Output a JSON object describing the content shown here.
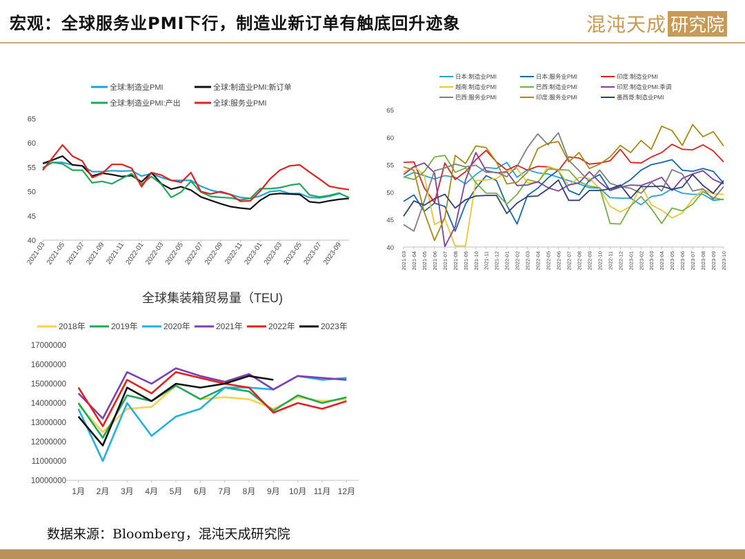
{
  "header": {
    "title": "宏观：全球服务业PMI下行，制造业新订单有触底回升迹象",
    "brand_name": "混沌天成",
    "brand_suffix": "研究院",
    "brand_color": "#c89a55"
  },
  "footer": {
    "source": "数据来源：Bloomberg，混沌天成研究院"
  },
  "chart_data": [
    {
      "type": "line",
      "title": "",
      "x": [
        "2021-03",
        "2021-04",
        "2021-05",
        "2021-06",
        "2021-07",
        "2021-08",
        "2021-09",
        "2021-10",
        "2021-11",
        "2021-12",
        "2022-01",
        "2022-02",
        "2022-03",
        "2022-04",
        "2022-05",
        "2022-06",
        "2022-07",
        "2022-08",
        "2022-09",
        "2022-10",
        "2022-11",
        "2022-12",
        "2023-01",
        "2023-02",
        "2023-03",
        "2023-04",
        "2023-05",
        "2023-06",
        "2023-07",
        "2023-08",
        "2023-09",
        "2023-10"
      ],
      "x_tick_labels": [
        "2021-03",
        "2021-05",
        "2021-07",
        "2021-09",
        "2021-11",
        "2022-01",
        "2022-03",
        "2022-05",
        "2022-07",
        "2022-09",
        "2022-11",
        "2023-01",
        "2023-03",
        "2023-05",
        "2023-07",
        "2023-09"
      ],
      "ylim": [
        40,
        65
      ],
      "yticks": [
        40,
        45,
        50,
        55,
        60,
        65
      ],
      "legend_position": "top",
      "series": [
        {
          "name": "全球:制造业PMI",
          "color": "#1fa3dc",
          "values": [
            55.8,
            56.0,
            56.0,
            55.5,
            55.3,
            54.1,
            54.1,
            54.3,
            54.2,
            54.3,
            53.2,
            53.7,
            52.9,
            52.3,
            52.3,
            52.3,
            51.1,
            50.3,
            49.8,
            49.4,
            48.8,
            48.6,
            49.1,
            50.0,
            50.2,
            49.6,
            49.6,
            48.8,
            48.7,
            49.0,
            49.6,
            48.8
          ]
        },
        {
          "name": "全球:制造业PMI:新订单",
          "color": "#111111",
          "values": [
            55.8,
            56.5,
            57.3,
            55.5,
            55.3,
            53.2,
            53.8,
            53.5,
            53.1,
            53.3,
            52.0,
            53.9,
            51.6,
            50.5,
            51.0,
            50.3,
            48.9,
            48.2,
            47.5,
            46.9,
            46.6,
            46.4,
            48.2,
            49.4,
            49.6,
            49.5,
            49.4,
            47.9,
            47.7,
            48.1,
            48.4,
            48.6
          ]
        },
        {
          "name": "全球:制造业PMI:产出",
          "color": "#1fa85a",
          "values": [
            54.9,
            56.0,
            55.7,
            54.4,
            54.4,
            51.8,
            52.1,
            51.6,
            52.7,
            53.7,
            51.5,
            53.1,
            51.5,
            48.8,
            49.9,
            52.1,
            49.9,
            49.0,
            48.8,
            48.7,
            48.3,
            48.6,
            50.6,
            50.6,
            50.8,
            51.3,
            51.6,
            49.3,
            48.9,
            49.2,
            49.7,
            48.7
          ]
        },
        {
          "name": "全球:服务业PMI",
          "color": "#e3201b",
          "values": [
            54.4,
            57.0,
            59.6,
            57.3,
            56.3,
            52.9,
            53.7,
            55.6,
            55.6,
            54.8,
            51.0,
            53.9,
            53.4,
            52.3,
            51.9,
            53.9,
            50.0,
            49.5,
            50.0,
            49.4,
            48.0,
            48.1,
            50.1,
            52.6,
            54.4,
            55.3,
            55.5,
            54.0,
            52.6,
            51.1,
            50.7,
            50.4
          ]
        }
      ]
    },
    {
      "type": "line",
      "title": "",
      "x": [
        "2021-03",
        "2021-04",
        "2021-05",
        "2021-06",
        "2021-07",
        "2021-08",
        "2021-09",
        "2021-10",
        "2021-11",
        "2021-12",
        "2022-01",
        "2022-02",
        "2022-03",
        "2022-04",
        "2022-05",
        "2022-06",
        "2022-07",
        "2022-08",
        "2022-09",
        "2022-10",
        "2022-11",
        "2022-12",
        "2023-01",
        "2023-02",
        "2023-03",
        "2023-04",
        "2023-05",
        "2023-06",
        "2023-07",
        "2023-08",
        "2023-09",
        "2023-10"
      ],
      "ylim": [
        40,
        65
      ],
      "yticks": [
        40,
        45,
        50,
        55,
        60,
        65
      ],
      "legend_position": "top",
      "series": [
        {
          "name": "日本:制造业PMI",
          "color": "#1fa3dc",
          "values": [
            52.7,
            53.6,
            53.0,
            52.4,
            53.0,
            52.7,
            51.5,
            53.2,
            54.5,
            54.3,
            55.4,
            52.7,
            54.1,
            53.5,
            53.3,
            52.7,
            52.1,
            51.5,
            50.8,
            50.7,
            49.0,
            48.9,
            48.9,
            47.7,
            49.2,
            49.5,
            50.6,
            49.8,
            49.6,
            49.6,
            48.5,
            48.7
          ]
        },
        {
          "name": "日本:服务业PMI",
          "color": "#1565b0",
          "values": [
            48.3,
            49.5,
            46.5,
            48.0,
            47.4,
            42.9,
            47.8,
            50.7,
            53.0,
            52.1,
            47.6,
            44.2,
            49.4,
            50.7,
            52.6,
            54.0,
            50.3,
            49.5,
            52.2,
            53.2,
            50.3,
            51.1,
            52.3,
            54.0,
            55.0,
            55.4,
            55.9,
            54.0,
            53.8,
            54.3,
            53.8,
            51.6
          ]
        },
        {
          "name": "印度:制造业PMI",
          "color": "#e3201b",
          "values": [
            55.4,
            55.5,
            50.8,
            48.1,
            55.3,
            52.3,
            53.7,
            55.9,
            57.6,
            55.5,
            54.0,
            54.9,
            54.0,
            54.7,
            54.6,
            53.9,
            56.4,
            56.2,
            55.1,
            55.3,
            55.7,
            57.8,
            55.4,
            55.3,
            56.4,
            57.2,
            58.7,
            57.8,
            57.7,
            58.6,
            57.5,
            55.5
          ]
        },
        {
          "name": "越南:制造业PMI",
          "color": "#f4c430",
          "values": [
            53.6,
            54.7,
            53.1,
            44.1,
            45.1,
            40.2,
            40.2,
            52.1,
            52.2,
            52.5,
            53.7,
            54.3,
            51.7,
            51.7,
            54.7,
            54.0,
            51.2,
            52.7,
            52.5,
            50.6,
            47.4,
            46.4,
            47.4,
            51.2,
            47.7,
            46.7,
            45.3,
            46.2,
            48.7,
            50.5,
            49.7,
            49.6
          ]
        },
        {
          "name": "巴西:制造业PMI",
          "color": "#74b041",
          "values": [
            52.8,
            52.3,
            53.7,
            56.4,
            56.7,
            53.6,
            54.4,
            51.7,
            49.8,
            49.8,
            47.8,
            49.6,
            52.3,
            51.8,
            54.2,
            54.1,
            54.0,
            51.9,
            51.1,
            50.8,
            44.3,
            44.2,
            47.5,
            49.2,
            47.0,
            44.3,
            47.1,
            46.6,
            47.8,
            50.1,
            49.0,
            48.6
          ]
        },
        {
          "name": "印尼:制造业PMI:季调",
          "color": "#7e3fa4",
          "values": [
            53.2,
            54.6,
            55.3,
            53.5,
            40.1,
            43.7,
            52.2,
            57.2,
            53.9,
            53.5,
            53.7,
            51.2,
            51.3,
            51.9,
            50.8,
            50.2,
            51.3,
            51.7,
            53.7,
            51.8,
            50.3,
            50.9,
            51.3,
            51.2,
            51.9,
            52.7,
            50.3,
            52.5,
            53.3,
            53.9,
            52.3,
            51.5
          ]
        },
        {
          "name": "巴西:服务业PMI",
          "color": "#7f7f7f",
          "values": [
            44.1,
            42.9,
            48.3,
            53.9,
            54.4,
            55.1,
            54.6,
            54.9,
            53.6,
            53.6,
            52.8,
            54.7,
            58.1,
            60.6,
            58.6,
            60.8,
            55.8,
            53.9,
            51.9,
            54.0,
            51.6,
            51.0,
            50.7,
            49.8,
            51.8,
            50.2,
            54.1,
            53.3,
            50.2,
            50.6,
            48.7,
            51.0
          ]
        },
        {
          "name": "印度:服务业PMI",
          "color": "#a88a13",
          "values": [
            54.6,
            54.0,
            46.4,
            41.2,
            45.4,
            56.7,
            55.2,
            58.4,
            58.1,
            55.5,
            51.5,
            51.8,
            53.6,
            57.9,
            58.9,
            59.2,
            55.5,
            57.2,
            54.3,
            55.1,
            56.4,
            58.5,
            57.2,
            59.4,
            57.8,
            62.0,
            61.2,
            58.5,
            62.3,
            60.1,
            61.0,
            58.4
          ]
        },
        {
          "name": "墨西哥:制造业PMI",
          "color": "#2f3f73",
          "values": [
            45.6,
            48.4,
            47.6,
            48.8,
            49.6,
            47.1,
            48.6,
            49.3,
            49.4,
            49.4,
            46.1,
            48.0,
            49.2,
            49.3,
            50.6,
            52.2,
            48.5,
            48.5,
            50.3,
            50.3,
            50.6,
            51.3,
            48.9,
            51.0,
            51.0,
            51.1,
            50.5,
            50.9,
            53.2,
            51.2,
            49.8,
            52.1
          ]
        }
      ]
    },
    {
      "type": "line",
      "title": "全球集装箱贸易量（TEU)",
      "categories": [
        "1月",
        "2月",
        "3月",
        "4月",
        "5月",
        "6月",
        "7月",
        "8月",
        "9月",
        "10月",
        "11月",
        "12月"
      ],
      "ylim": [
        10000000,
        17000000
      ],
      "yticks": [
        10000000,
        11000000,
        12000000,
        13000000,
        14000000,
        15000000,
        16000000,
        17000000
      ],
      "legend_position": "top",
      "series": [
        {
          "name": "2018年",
          "color": "#f8d24b",
          "values": [
            13900000,
            12500000,
            13700000,
            13800000,
            14900000,
            14200000,
            14300000,
            14200000,
            13700000,
            14300000,
            14100000,
            14200000
          ]
        },
        {
          "name": "2019年",
          "color": "#1fa85a",
          "values": [
            14000000,
            12200000,
            14400000,
            14100000,
            14900000,
            14200000,
            14800000,
            14600000,
            13600000,
            14400000,
            14000000,
            14300000
          ]
        },
        {
          "name": "2020年",
          "color": "#1fb0e6",
          "values": [
            13700000,
            11000000,
            14000000,
            12300000,
            13300000,
            13700000,
            14800000,
            14800000,
            14700000,
            15400000,
            15200000,
            15300000
          ]
        },
        {
          "name": "2021年",
          "color": "#7b3fb0",
          "values": [
            14500000,
            13200000,
            15600000,
            15000000,
            15800000,
            15400000,
            15100000,
            15500000,
            14700000,
            15400000,
            15300000,
            15200000
          ]
        },
        {
          "name": "2022年",
          "color": "#e3201b",
          "values": [
            14800000,
            12800000,
            15200000,
            14500000,
            15600000,
            15300000,
            15000000,
            14800000,
            13500000,
            14000000,
            13700000,
            14100000
          ]
        },
        {
          "name": "2023年",
          "color": "#111111",
          "values": [
            13300000,
            11800000,
            14800000,
            14100000,
            15000000,
            14800000,
            15000000,
            15400000,
            15200000,
            null,
            null,
            null
          ]
        }
      ]
    }
  ]
}
